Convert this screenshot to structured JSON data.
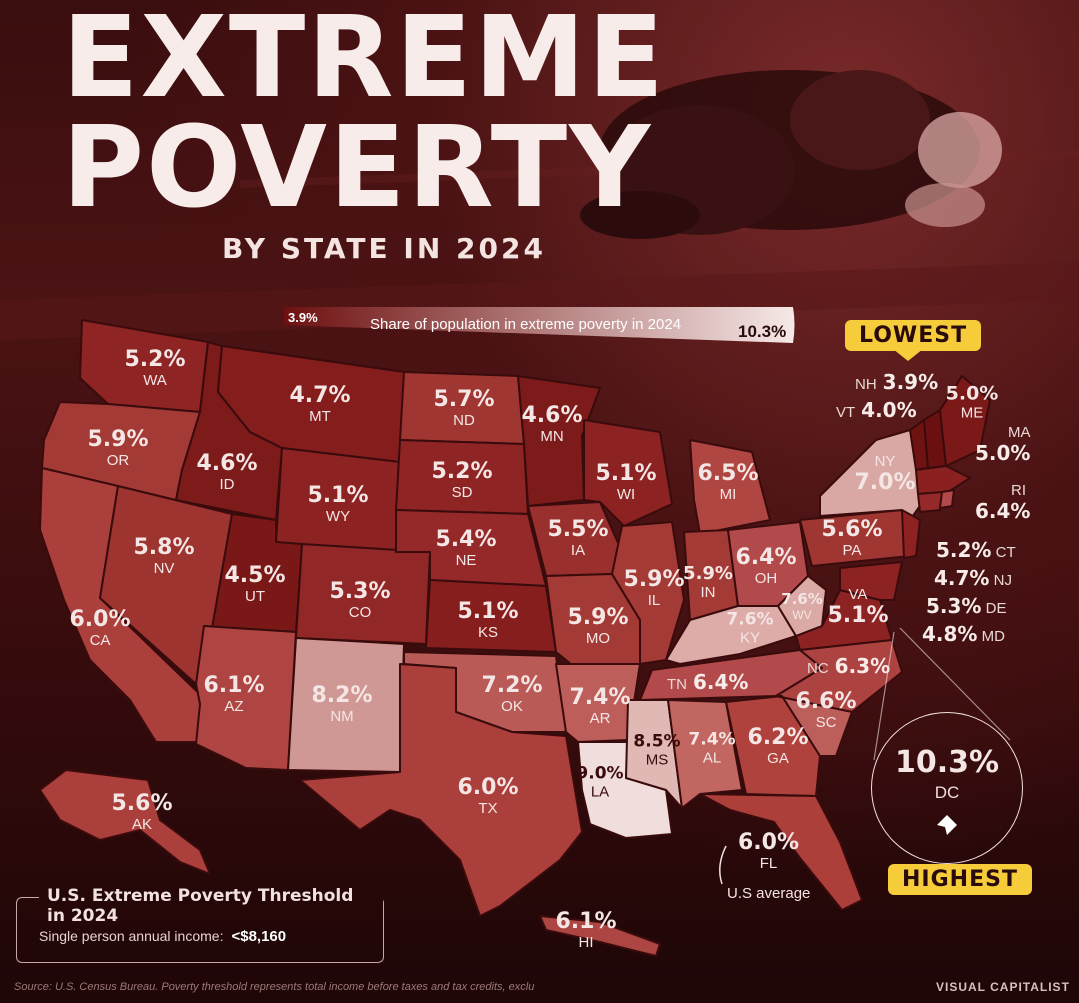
{
  "header": {
    "title_line1": "EXTREME",
    "title_line2": "POVERTY",
    "subtitle": "BY STATE IN 2024"
  },
  "legend": {
    "min_label": "3.9%",
    "max_label": "10.3%",
    "caption": "Share of population in extreme poverty in 2024",
    "color_low": "#6e1010",
    "color_high": "#f6e9e7"
  },
  "callouts": {
    "lowest_label": "LOWEST",
    "highest_label": "HIGHEST",
    "us_average_label": "U.S average"
  },
  "states": {
    "WA": {
      "abbr": "WA",
      "value": "5.2%"
    },
    "OR": {
      "abbr": "OR",
      "value": "5.9%"
    },
    "CA": {
      "abbr": "CA",
      "value": "6.0%"
    },
    "NV": {
      "abbr": "NV",
      "value": "5.8%"
    },
    "ID": {
      "abbr": "ID",
      "value": "4.6%"
    },
    "MT": {
      "abbr": "MT",
      "value": "4.7%"
    },
    "WY": {
      "abbr": "WY",
      "value": "5.1%"
    },
    "UT": {
      "abbr": "UT",
      "value": "4.5%"
    },
    "AZ": {
      "abbr": "AZ",
      "value": "6.1%"
    },
    "CO": {
      "abbr": "CO",
      "value": "5.3%"
    },
    "NM": {
      "abbr": "NM",
      "value": "8.2%"
    },
    "ND": {
      "abbr": "ND",
      "value": "5.7%"
    },
    "SD": {
      "abbr": "SD",
      "value": "5.2%"
    },
    "NE": {
      "abbr": "NE",
      "value": "5.4%"
    },
    "KS": {
      "abbr": "KS",
      "value": "5.1%"
    },
    "OK": {
      "abbr": "OK",
      "value": "7.2%"
    },
    "TX": {
      "abbr": "TX",
      "value": "6.0%"
    },
    "MN": {
      "abbr": "MN",
      "value": "4.6%"
    },
    "IA": {
      "abbr": "IA",
      "value": "5.5%"
    },
    "MO": {
      "abbr": "MO",
      "value": "5.9%"
    },
    "AR": {
      "abbr": "AR",
      "value": "7.4%"
    },
    "LA": {
      "abbr": "LA",
      "value": "9.0%"
    },
    "WI": {
      "abbr": "WI",
      "value": "5.1%"
    },
    "IL": {
      "abbr": "IL",
      "value": "5.9%"
    },
    "MI": {
      "abbr": "MI",
      "value": "6.5%"
    },
    "IN": {
      "abbr": "IN",
      "value": "5.9%"
    },
    "OH": {
      "abbr": "OH",
      "value": "6.4%"
    },
    "KY": {
      "abbr": "KY",
      "value": "7.6%"
    },
    "TN": {
      "abbr": "TN",
      "value": "6.4%"
    },
    "MS": {
      "abbr": "MS",
      "value": "8.5%"
    },
    "AL": {
      "abbr": "AL",
      "value": "7.4%"
    },
    "GA": {
      "abbr": "GA",
      "value": "6.2%"
    },
    "FL": {
      "abbr": "FL",
      "value": "6.0%"
    },
    "SC": {
      "abbr": "SC",
      "value": "6.6%"
    },
    "NC": {
      "abbr": "NC",
      "value": "6.3%"
    },
    "VA": {
      "abbr": "VA",
      "value": "5.1%"
    },
    "WV": {
      "abbr": "WV",
      "value": "7.6%"
    },
    "PA": {
      "abbr": "PA",
      "value": "5.6%"
    },
    "NY": {
      "abbr": "NY",
      "value": "7.0%"
    },
    "ME": {
      "abbr": "ME",
      "value": "5.0%"
    },
    "AK": {
      "abbr": "AK",
      "value": "5.6%"
    },
    "HI": {
      "abbr": "HI",
      "value": "6.1%"
    },
    "NH": {
      "abbr": "NH",
      "value": "3.9%"
    },
    "VT": {
      "abbr": "VT",
      "value": "4.0%"
    },
    "MA": {
      "abbr": "MA",
      "value": "5.0%"
    },
    "RI": {
      "abbr": "RI",
      "value": "6.4%"
    },
    "CT": {
      "abbr": "CT",
      "value": "5.2%"
    },
    "NJ": {
      "abbr": "NJ",
      "value": "4.7%"
    },
    "DE": {
      "abbr": "DE",
      "value": "5.3%"
    },
    "MD": {
      "abbr": "MD",
      "value": "4.8%"
    },
    "DC": {
      "abbr": "DC",
      "value": "10.3%"
    }
  },
  "threshold": {
    "title": "U.S. Extreme Poverty Threshold in 2024",
    "label": "Single person annual income:",
    "value": "<$8,160"
  },
  "footer": {
    "source": "Source: U.S. Census Bureau. Poverty threshold represents total income before taxes and tax credits, excluding housing assistance and other noncash benefits.",
    "brand": "VISUAL CAPITALIST"
  }
}
